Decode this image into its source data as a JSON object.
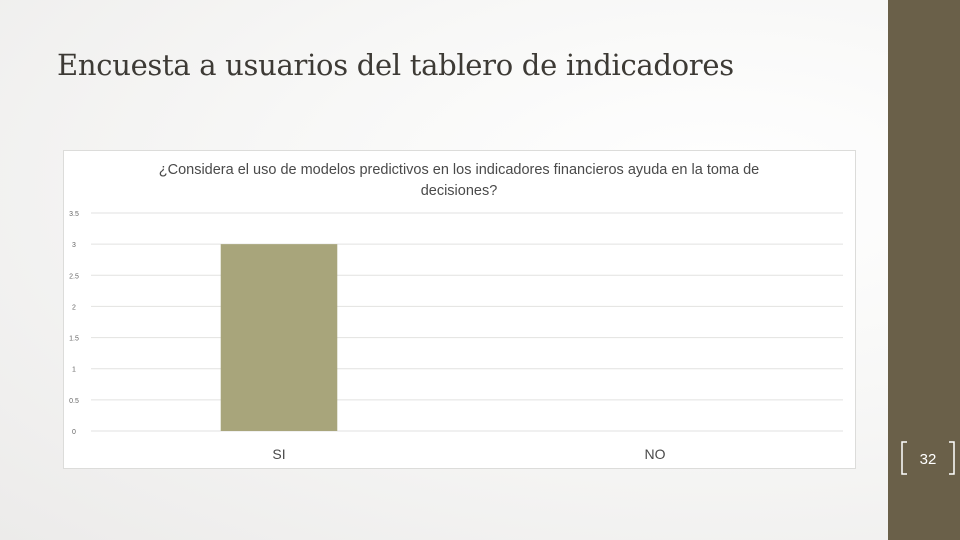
{
  "slide": {
    "title": "Encuesta a usuarios del tablero de indicadores",
    "page_number": "32"
  },
  "colors": {
    "accent_bar": "#6a6049",
    "bar_fill": "#a8a57b",
    "grid": "#e2e2e0"
  },
  "chart_data": {
    "type": "bar",
    "title": "¿Considera el uso de modelos predictivos en los indicadores financieros ayuda en la toma de decisiones?",
    "categories": [
      "SI",
      "NO"
    ],
    "values": [
      3,
      0
    ],
    "ylim": [
      0,
      3.5
    ],
    "yticks": [
      0,
      0.5,
      1,
      1.5,
      2,
      2.5,
      3,
      3.5
    ],
    "ytick_labels": [
      "0",
      "0.5",
      "1",
      "1.5",
      "2",
      "2.5",
      "3",
      "3.5"
    ],
    "xlabel": "",
    "ylabel": "",
    "grid": true,
    "legend": "none"
  }
}
